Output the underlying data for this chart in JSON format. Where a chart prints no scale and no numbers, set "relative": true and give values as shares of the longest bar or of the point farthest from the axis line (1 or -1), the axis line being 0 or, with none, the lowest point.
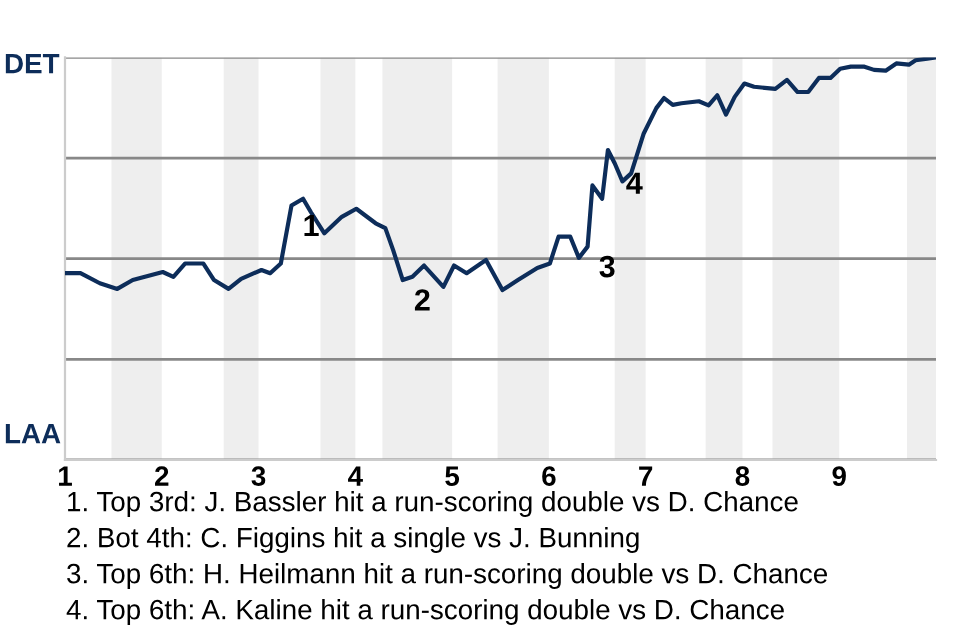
{
  "chart_data": {
    "type": "line",
    "relative": true,
    "x": [
      1.0,
      1.16,
      1.36,
      1.54,
      1.7,
      2.01,
      2.12,
      2.24,
      2.43,
      2.54,
      2.69,
      2.82,
      3.03,
      3.12,
      3.23,
      3.34,
      3.46,
      3.54,
      3.68,
      3.86,
      4.01,
      4.21,
      4.31,
      4.39,
      4.49,
      4.59,
      4.71,
      4.91,
      5.02,
      5.15,
      5.35,
      5.52,
      5.68,
      5.88,
      6.01,
      6.1,
      6.22,
      6.31,
      6.4,
      6.45,
      6.55,
      6.61,
      6.68,
      6.76,
      6.85,
      6.98,
      7.11,
      7.19,
      7.28,
      7.37,
      7.55,
      7.65,
      7.74,
      7.83,
      7.92,
      8.02,
      8.12,
      8.34,
      8.46,
      8.57,
      8.68,
      8.79,
      8.91,
      9.01,
      9.12,
      9.26,
      9.36,
      9.48,
      9.59,
      9.72,
      9.79,
      9.91,
      10.0
    ],
    "series": [
      {
        "color": "#0d2d5a",
        "values": [
          0.464,
          0.464,
          0.439,
          0.425,
          0.447,
          0.467,
          0.455,
          0.488,
          0.488,
          0.447,
          0.425,
          0.45,
          0.472,
          0.464,
          0.488,
          0.632,
          0.649,
          0.616,
          0.563,
          0.604,
          0.624,
          0.588,
          0.576,
          0.522,
          0.447,
          0.455,
          0.483,
          0.43,
          0.483,
          0.464,
          0.497,
          0.422,
          0.447,
          0.477,
          0.488,
          0.555,
          0.555,
          0.502,
          0.53,
          0.682,
          0.649,
          0.77,
          0.737,
          0.692,
          0.712,
          0.811,
          0.874,
          0.899,
          0.882,
          0.886,
          0.891,
          0.881,
          0.906,
          0.858,
          0.902,
          0.935,
          0.927,
          0.922,
          0.944,
          0.914,
          0.914,
          0.949,
          0.949,
          0.972,
          0.977,
          0.977,
          0.969,
          0.967,
          0.985,
          0.982,
          0.993,
          0.997,
          1
        ]
      }
    ],
    "xlim": [
      1,
      10
    ],
    "xticks": [
      1,
      2,
      3,
      4,
      5,
      6,
      7,
      8,
      9
    ],
    "grid": "y",
    "bands": [
      {
        "axis": "x",
        "from": 1.48,
        "to": 2.0,
        "color": "#eeeeee"
      },
      {
        "axis": "x",
        "from": 2.64,
        "to": 3.0,
        "color": "#eeeeee"
      },
      {
        "axis": "x",
        "from": 3.64,
        "to": 4.0,
        "color": "#eeeeee"
      },
      {
        "axis": "x",
        "from": 4.28,
        "to": 5.0,
        "color": "#eeeeee"
      },
      {
        "axis": "x",
        "from": 5.47,
        "to": 6.0,
        "color": "#eeeeee"
      },
      {
        "axis": "x",
        "from": 6.68,
        "to": 7.0,
        "color": "#eeeeee"
      },
      {
        "axis": "x",
        "from": 7.62,
        "to": 8.0,
        "color": "#eeeeee"
      },
      {
        "axis": "x",
        "from": 8.31,
        "to": 9.0,
        "color": "#eeeeee"
      },
      {
        "axis": "x",
        "from": 9.7,
        "to": 10.0,
        "color": "#eeeeee"
      }
    ],
    "annotations": [
      "DET",
      "LAA",
      {
        "text": "1",
        "x": 3.34,
        "y": 0.632
      },
      {
        "text": "2",
        "x": 4.49,
        "y": 0.447
      },
      {
        "text": "3",
        "x": 6.4,
        "y": 0.53
      },
      {
        "text": "4",
        "x": 6.68,
        "y": 0.737
      },
      "1. Top 3rd: J. Bassler hit a run-scoring double vs D. Chance",
      "2. Bot 4th: C. Figgins hit a single vs J. Bunning",
      "3. Top 6th: H. Heilmann hit a run-scoring double vs D. Chance",
      "4. Top 6th: A. Kaline hit a run-scoring double vs D. Chance"
    ]
  }
}
